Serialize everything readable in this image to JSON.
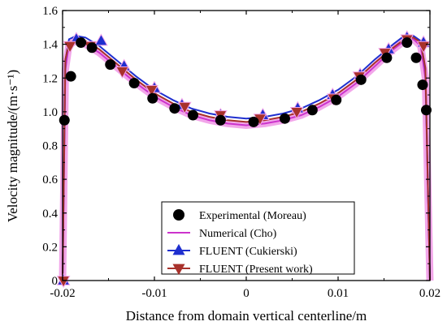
{
  "chart_data": {
    "type": "scatter",
    "xlabel": "Distance from domain vertical centerline/m",
    "ylabel": "Velocity magnitude/(m·s⁻¹)",
    "xlim": [
      -0.02,
      0.02
    ],
    "ylim": [
      0,
      1.6
    ],
    "x_ticks": [
      "-0.02",
      "-0.01",
      "0",
      "0.01",
      "0.02"
    ],
    "y_ticks": [
      "0",
      "0.2",
      "0.4",
      "0.6",
      "0.8",
      "1.0",
      "1.2",
      "1.4",
      "1.6"
    ],
    "legend_position": "bottom-right",
    "series": [
      {
        "name": "Experimental (Moreau)",
        "kind": "marker-circle",
        "color": "#000000",
        "x": [
          -0.0198,
          -0.0191,
          -0.018,
          -0.0168,
          -0.0148,
          -0.0122,
          -0.0102,
          -0.0078,
          -0.0058,
          -0.0028,
          0.0008,
          0.0042,
          0.0072,
          0.0098,
          0.0125,
          0.0153,
          0.0175,
          0.0185,
          0.0192,
          0.0196
        ],
        "y": [
          0.95,
          1.21,
          1.41,
          1.38,
          1.28,
          1.17,
          1.08,
          1.02,
          0.98,
          0.95,
          0.94,
          0.96,
          1.01,
          1.07,
          1.19,
          1.32,
          1.41,
          1.32,
          1.16,
          1.01
        ]
      },
      {
        "name": "Numerical (Cho)",
        "kind": "line",
        "color": "#cc33cc",
        "x": [
          -0.02,
          -0.0197,
          -0.0193,
          -0.0185,
          -0.0175,
          -0.016,
          -0.014,
          -0.012,
          -0.01,
          -0.008,
          -0.006,
          -0.004,
          -0.002,
          0.0,
          0.002,
          0.004,
          0.006,
          0.008,
          0.01,
          0.012,
          0.014,
          0.016,
          0.0172,
          0.0182,
          0.019,
          0.0195,
          0.02
        ],
        "y": [
          0.0,
          1.25,
          1.4,
          1.42,
          1.4,
          1.35,
          1.26,
          1.17,
          1.09,
          1.03,
          0.98,
          0.95,
          0.93,
          0.92,
          0.93,
          0.95,
          0.98,
          1.03,
          1.09,
          1.17,
          1.27,
          1.37,
          1.42,
          1.43,
          1.39,
          1.2,
          0.0
        ]
      },
      {
        "name": "FLUENT (Cukierski)",
        "kind": "line-triangle-up",
        "color": "#1f2fcf",
        "x": [
          -0.02,
          -0.0197,
          -0.0193,
          -0.0185,
          -0.0175,
          -0.016,
          -0.014,
          -0.012,
          -0.01,
          -0.008,
          -0.006,
          -0.004,
          -0.002,
          0.0,
          0.002,
          0.004,
          0.006,
          0.008,
          0.01,
          0.012,
          0.014,
          0.016,
          0.0172,
          0.0182,
          0.019,
          0.0195,
          0.02
        ],
        "y": [
          0.0,
          1.3,
          1.43,
          1.45,
          1.44,
          1.39,
          1.3,
          1.21,
          1.13,
          1.07,
          1.02,
          0.99,
          0.97,
          0.96,
          0.97,
          0.99,
          1.02,
          1.07,
          1.13,
          1.21,
          1.31,
          1.4,
          1.45,
          1.45,
          1.42,
          1.25,
          0.0
        ],
        "marker_x": [
          -0.0199,
          -0.0185,
          -0.0158,
          -0.0133,
          -0.01,
          -0.007,
          -0.0028,
          0.0018,
          0.0056,
          0.0094,
          0.0124,
          0.0155,
          0.0175,
          0.0193
        ],
        "marker_y": [
          0.0,
          1.43,
          1.42,
          1.27,
          1.14,
          1.04,
          0.98,
          0.98,
          1.02,
          1.1,
          1.22,
          1.37,
          1.44,
          1.41
        ]
      },
      {
        "name": "FLUENT (Present work)",
        "kind": "line-triangle-down",
        "color": "#a8312b",
        "x": [
          -0.02,
          -0.0197,
          -0.0193,
          -0.0185,
          -0.0175,
          -0.016,
          -0.014,
          -0.012,
          -0.01,
          -0.008,
          -0.006,
          -0.004,
          -0.002,
          0.0,
          0.002,
          0.004,
          0.006,
          0.008,
          0.01,
          0.012,
          0.014,
          0.016,
          0.0172,
          0.0182,
          0.019,
          0.0195,
          0.02
        ],
        "y": [
          0.0,
          1.31,
          1.41,
          1.43,
          1.42,
          1.37,
          1.28,
          1.19,
          1.11,
          1.05,
          1.0,
          0.97,
          0.95,
          0.94,
          0.95,
          0.97,
          1.0,
          1.05,
          1.11,
          1.19,
          1.29,
          1.38,
          1.43,
          1.44,
          1.41,
          1.26,
          0.0
        ],
        "marker_x": [
          -0.0199,
          -0.0192,
          -0.017,
          -0.0135,
          -0.0103,
          -0.0067,
          -0.0028,
          0.0015,
          0.0055,
          0.0095,
          0.0123,
          0.0151,
          0.0175,
          0.0193
        ],
        "marker_y": [
          0.0,
          1.39,
          1.39,
          1.24,
          1.13,
          1.03,
          0.98,
          0.96,
          1.0,
          1.08,
          1.21,
          1.35,
          1.43,
          1.39
        ]
      }
    ]
  }
}
